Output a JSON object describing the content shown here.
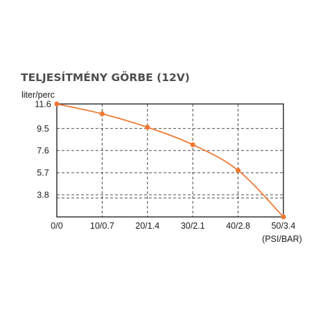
{
  "chart_data": {
    "type": "line",
    "title": "TELJESÍTMÉNY GÖRBE (12V)",
    "ylabel": "liter/perc",
    "xlabel": "(PSI/BAR)",
    "categories": [
      "0/0",
      "10/0.7",
      "20/1.4",
      "30/2.1",
      "40/2.8",
      "50/3.4"
    ],
    "x": [
      0,
      10,
      20,
      30,
      40,
      50
    ],
    "yticks": [
      "11.6",
      "9.5",
      "7.6",
      "5.7",
      "3.8"
    ],
    "ytick_values": [
      11.6,
      9.5,
      7.6,
      5.7,
      3.8
    ],
    "ylim": [
      1.9,
      11.6
    ],
    "xlim": [
      0,
      50
    ],
    "grid": true,
    "series": [
      {
        "values": [
          11.6,
          10.75,
          9.6,
          8.1,
          5.9,
          1.9
        ]
      }
    ],
    "colors": {
      "line": "#f07a32",
      "grid": "#333333",
      "frame": "#000000",
      "title": "#4f4f4f"
    }
  }
}
